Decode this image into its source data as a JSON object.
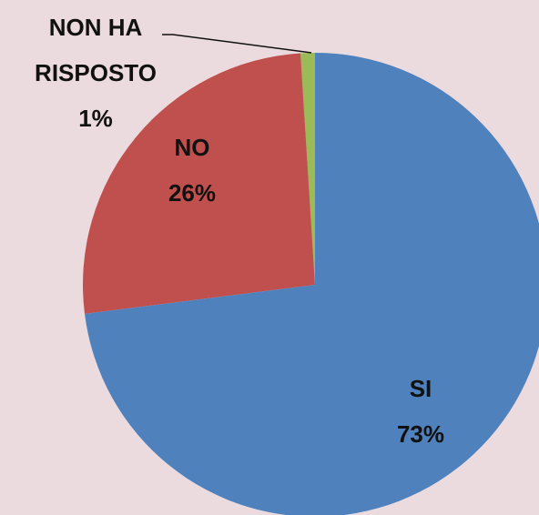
{
  "chart_data": {
    "type": "pie",
    "categories": [
      "SI",
      "NO",
      "NON HA RISPOSTO"
    ],
    "values": [
      73,
      26,
      1
    ],
    "value_labels": [
      "73%",
      "26%",
      "1%"
    ],
    "colors": [
      "#4f81bd",
      "#c0504d",
      "#9bbb59"
    ]
  }
}
